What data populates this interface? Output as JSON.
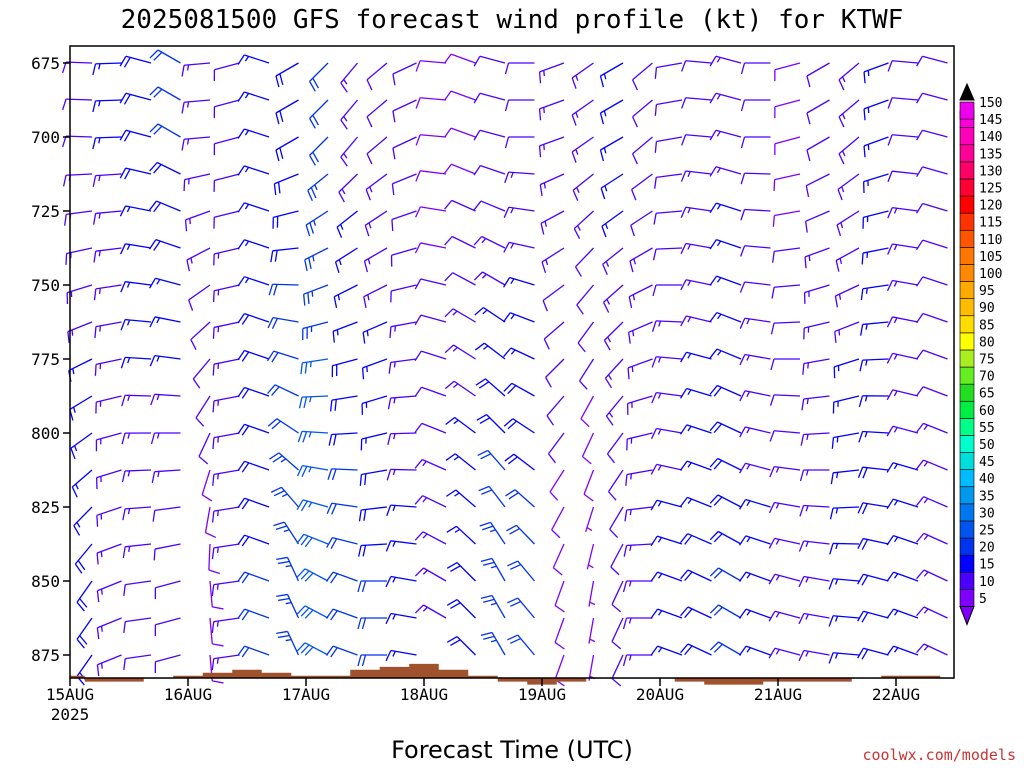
{
  "chart_data": {
    "type": "wind-barb",
    "title": "2025081500 GFS forecast wind profile (kt) for KTWF",
    "xlabel": "Forecast Time (UTC)",
    "x_ticks": [
      "15AUG",
      "16AUG",
      "17AUG",
      "18AUG",
      "19AUG",
      "20AUG",
      "21AUG",
      "22AUG"
    ],
    "x_tick_sublabel": "2025",
    "x_range": [
      "2025-08-15 00Z",
      "2025-08-22 12Z"
    ],
    "y_ticks": [
      675,
      700,
      725,
      750,
      775,
      800,
      825,
      850,
      875
    ],
    "ylim": [
      670,
      875
    ],
    "y_reversed": true,
    "grid": false,
    "colorbar": {
      "unit": "kt",
      "levels": [
        5,
        10,
        15,
        20,
        25,
        30,
        35,
        40,
        45,
        50,
        55,
        60,
        65,
        70,
        75,
        80,
        85,
        90,
        95,
        100,
        105,
        110,
        115,
        120,
        125,
        130,
        135,
        140,
        145,
        150
      ],
      "colors": [
        "#7f00ff",
        "#4b00ff",
        "#0000ff",
        "#0033ee",
        "#0055ee",
        "#0077ee",
        "#0099ee",
        "#00bbff",
        "#00dddd",
        "#00ffcc",
        "#00ff88",
        "#00ee44",
        "#22dd22",
        "#66ee22",
        "#aaee22",
        "#ffff00",
        "#ffdd00",
        "#ffbb00",
        "#ffaa00",
        "#ff8800",
        "#ff7700",
        "#ff5500",
        "#ff3300",
        "#ff0000",
        "#ff0033",
        "#ff0066",
        "#ff0099",
        "#ff00bb",
        "#ff00dd",
        "#ee00ee"
      ]
    },
    "terrain_color": "#a0522d",
    "wind": {
      "time_step_hours": 6,
      "n_times": 31,
      "levels_hpa": [
        675,
        687.5,
        700,
        712.5,
        725,
        737.5,
        750,
        762.5,
        775,
        787.5,
        800,
        812.5,
        825,
        837.5,
        850,
        862.5,
        875
      ],
      "wind_from_dir_deg_at_700": [
        272,
        268,
        285,
        300,
        265,
        255,
        288,
        240,
        225,
        220,
        230,
        245,
        275,
        290,
        285,
        270,
        250,
        235,
        240,
        230,
        260,
        275,
        285,
        270,
        255,
        240,
        230,
        250,
        275,
        285,
        270
      ],
      "wind_from_dir_deg_at_850": [
        215,
        248,
        262,
        255,
        175,
        262,
        290,
        335,
        298,
        290,
        270,
        280,
        300,
        315,
        330,
        320,
        200,
        190,
        205,
        270,
        290,
        295,
        300,
        290,
        285,
        280,
        275,
        285,
        290,
        295,
        300
      ],
      "speed_kt_at_700": [
        12,
        15,
        18,
        20,
        14,
        12,
        16,
        18,
        22,
        14,
        12,
        10,
        8,
        9,
        10,
        12,
        14,
        14,
        16,
        12,
        10,
        12,
        14,
        10,
        9,
        12,
        14,
        16,
        12,
        10,
        12
      ],
      "speed_kt_at_850": [
        18,
        14,
        12,
        10,
        8,
        14,
        20,
        24,
        28,
        22,
        20,
        16,
        14,
        18,
        24,
        22,
        8,
        6,
        10,
        14,
        16,
        18,
        20,
        16,
        14,
        14,
        16,
        18,
        16,
        14,
        12
      ],
      "surface_pressure_hpa": [
        882,
        884,
        884,
        883,
        882,
        881,
        880,
        881,
        882,
        882,
        880,
        879,
        878,
        880,
        882,
        884,
        885,
        884,
        883,
        883,
        883,
        884,
        885,
        885,
        884,
        884,
        884,
        883,
        882,
        882,
        883
      ]
    }
  },
  "credit": "coolwx.com/models"
}
